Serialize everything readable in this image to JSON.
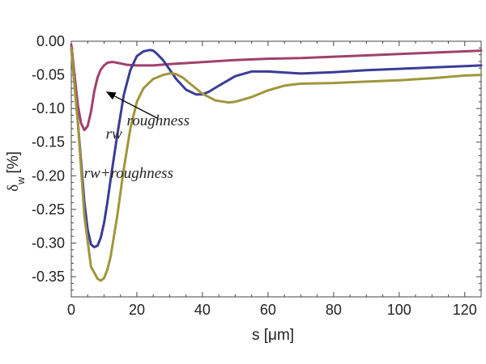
{
  "chart_data": {
    "type": "line",
    "title": "",
    "xlabel": "s [μm]",
    "ylabel": "δ_w [%]",
    "ylabel_main": "δ",
    "ylabel_sub": "w",
    "ylabel_unit": "[%]",
    "xlim": [
      0,
      125
    ],
    "ylim": [
      -0.38,
      0.0
    ],
    "xticks": [
      0,
      20,
      40,
      60,
      80,
      100,
      120
    ],
    "yticks": [
      0.0,
      -0.05,
      -0.1,
      -0.15,
      -0.2,
      -0.25,
      -0.3,
      -0.35
    ],
    "grid": false,
    "series": [
      {
        "name": "roughness",
        "color": "#a0406e",
        "x": [
          0,
          1,
          2,
          3,
          4,
          5,
          6,
          7,
          8,
          9,
          10,
          11,
          12,
          13,
          14,
          15,
          17,
          20,
          25,
          30,
          40,
          50,
          60,
          70,
          80,
          90,
          100,
          110,
          120,
          125
        ],
        "y": [
          -0.005,
          -0.05,
          -0.095,
          -0.122,
          -0.132,
          -0.126,
          -0.105,
          -0.075,
          -0.054,
          -0.042,
          -0.036,
          -0.032,
          -0.031,
          -0.031,
          -0.032,
          -0.033,
          -0.035,
          -0.036,
          -0.036,
          -0.034,
          -0.031,
          -0.028,
          -0.026,
          -0.025,
          -0.023,
          -0.021,
          -0.019,
          -0.017,
          -0.015,
          -0.014
        ]
      },
      {
        "name": "rw",
        "color": "#3c3c96",
        "x": [
          0,
          2,
          4,
          5,
          6,
          7,
          8,
          9,
          10,
          11,
          12,
          14,
          16,
          18,
          20,
          22,
          24,
          25,
          26,
          28,
          30,
          32,
          35,
          38,
          40,
          42,
          45,
          50,
          55,
          60,
          70,
          80,
          90,
          100,
          110,
          120,
          125
        ],
        "y": [
          -0.01,
          -0.12,
          -0.24,
          -0.28,
          -0.302,
          -0.306,
          -0.304,
          -0.292,
          -0.27,
          -0.24,
          -0.205,
          -0.14,
          -0.08,
          -0.043,
          -0.022,
          -0.015,
          -0.013,
          -0.014,
          -0.018,
          -0.028,
          -0.042,
          -0.056,
          -0.072,
          -0.079,
          -0.079,
          -0.075,
          -0.066,
          -0.052,
          -0.045,
          -0.045,
          -0.048,
          -0.046,
          -0.043,
          -0.041,
          -0.039,
          -0.037,
          -0.036
        ]
      },
      {
        "name": "rw+roughness",
        "color": "#a0963c",
        "x": [
          0,
          2,
          4,
          6,
          8,
          9,
          10,
          11,
          12,
          14,
          16,
          18,
          20,
          22,
          25,
          28,
          30,
          31,
          32,
          34,
          36,
          40,
          44,
          48,
          50,
          55,
          60,
          65,
          70,
          80,
          90,
          100,
          110,
          120,
          125
        ],
        "y": [
          -0.01,
          -0.12,
          -0.26,
          -0.335,
          -0.353,
          -0.356,
          -0.352,
          -0.34,
          -0.32,
          -0.26,
          -0.19,
          -0.13,
          -0.09,
          -0.07,
          -0.056,
          -0.05,
          -0.048,
          -0.048,
          -0.049,
          -0.054,
          -0.062,
          -0.078,
          -0.088,
          -0.091,
          -0.09,
          -0.083,
          -0.073,
          -0.066,
          -0.063,
          -0.062,
          -0.06,
          -0.058,
          -0.055,
          -0.051,
          -0.05
        ]
      }
    ],
    "annotations": [
      {
        "text": "rw",
        "x": 13,
        "y": -0.145
      },
      {
        "text": "roughness",
        "x": 26.5,
        "y": -0.125
      },
      {
        "text": "rw+roughness",
        "x": 17.5,
        "y": -0.203
      }
    ],
    "arrow": {
      "from": [
        26.5,
        -0.115
      ],
      "to": [
        11,
        -0.076
      ]
    }
  }
}
